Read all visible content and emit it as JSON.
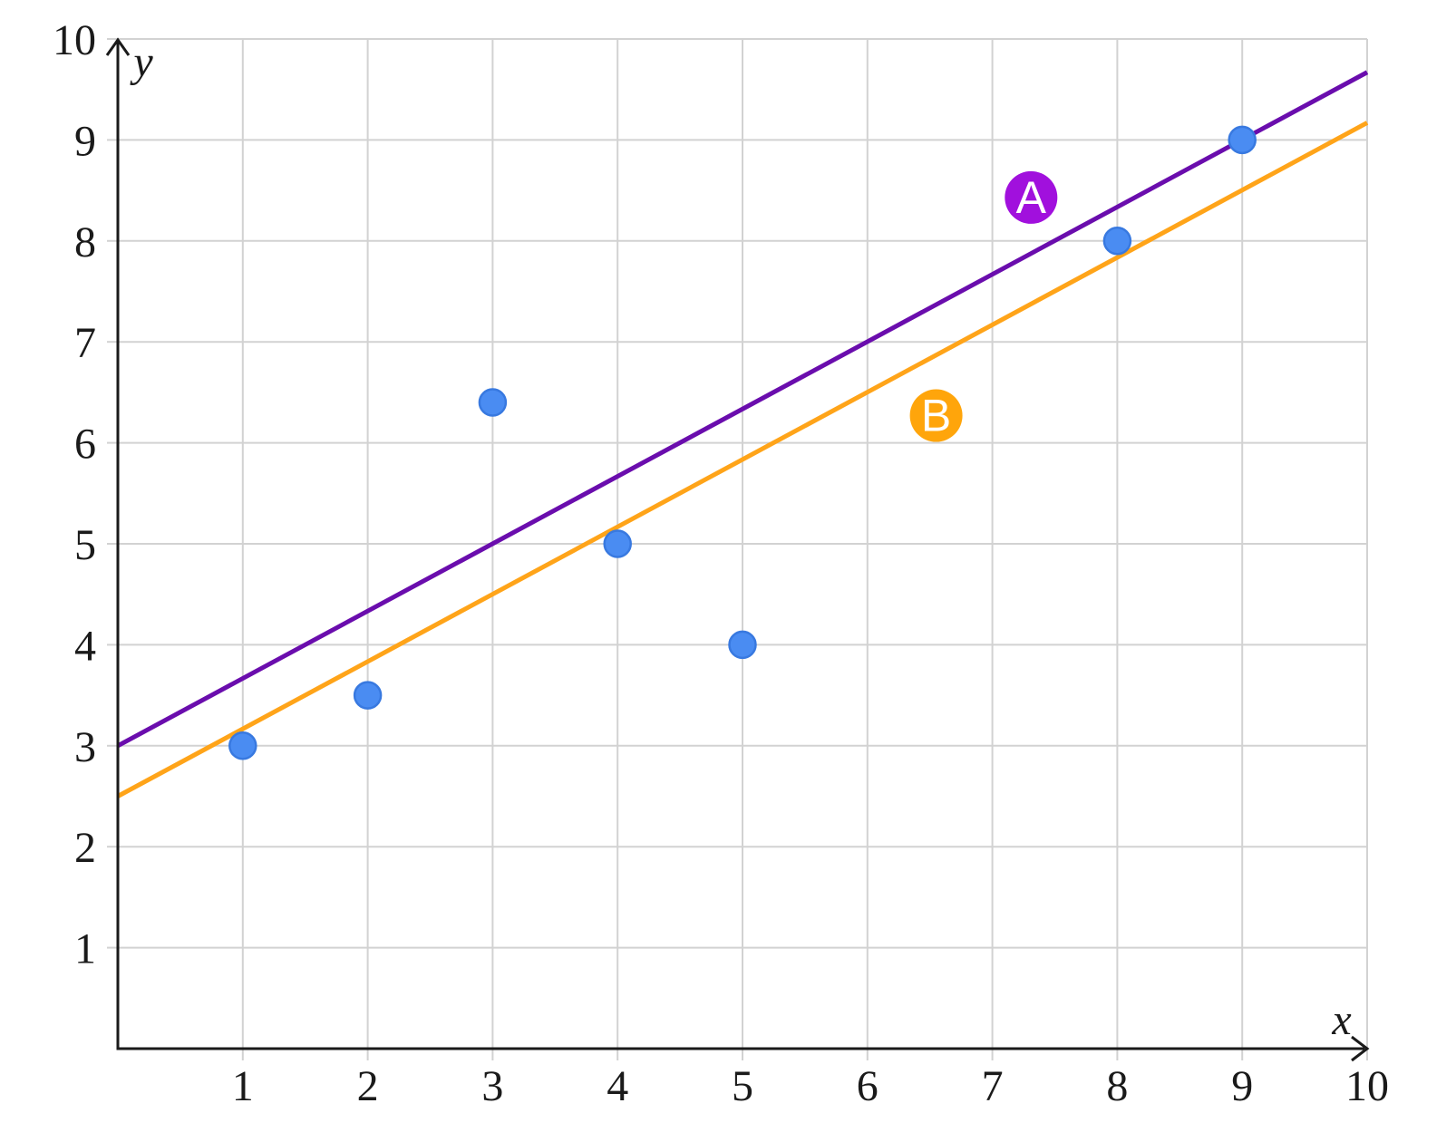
{
  "figure": {
    "background": "#ffffff"
  },
  "chart_data": {
    "type": "scatter",
    "title": "",
    "xlabel": "x",
    "ylabel": "y",
    "xlim": [
      0,
      10
    ],
    "ylim": [
      0,
      10
    ],
    "x_ticks": [
      1,
      2,
      3,
      4,
      5,
      6,
      7,
      8,
      9,
      10
    ],
    "y_ticks": [
      1,
      2,
      3,
      4,
      5,
      6,
      7,
      8,
      9,
      10
    ],
    "grid": true,
    "legend_position": "none",
    "colors": {
      "grid": "#d2d2d2",
      "axis": "#1a1a1a",
      "tick_text": "#1a1a1a",
      "point_fill": "#4a8cf2",
      "point_stroke": "#3879e0"
    },
    "scatter": {
      "name": "data-points",
      "points": [
        [
          1,
          3
        ],
        [
          2,
          3.5
        ],
        [
          3,
          6.4
        ],
        [
          4,
          5
        ],
        [
          5,
          4
        ],
        [
          8,
          8
        ],
        [
          9,
          9
        ]
      ]
    },
    "lines": [
      {
        "label": "A",
        "slope": 0.667,
        "intercept": 3.0,
        "x_range": [
          0,
          10
        ],
        "color": "#6a0dad",
        "badge_fill": "#a110dd",
        "badge_text_color": "#ffffff",
        "badge_pos": [
          7.31,
          8.43
        ]
      },
      {
        "label": "B",
        "slope": 0.667,
        "intercept": 2.5,
        "x_range": [
          0,
          10
        ],
        "color": "#ffa419",
        "badge_fill": "#ffa50b",
        "badge_text_color": "#ffffff",
        "badge_pos": [
          6.55,
          6.27
        ]
      }
    ]
  }
}
